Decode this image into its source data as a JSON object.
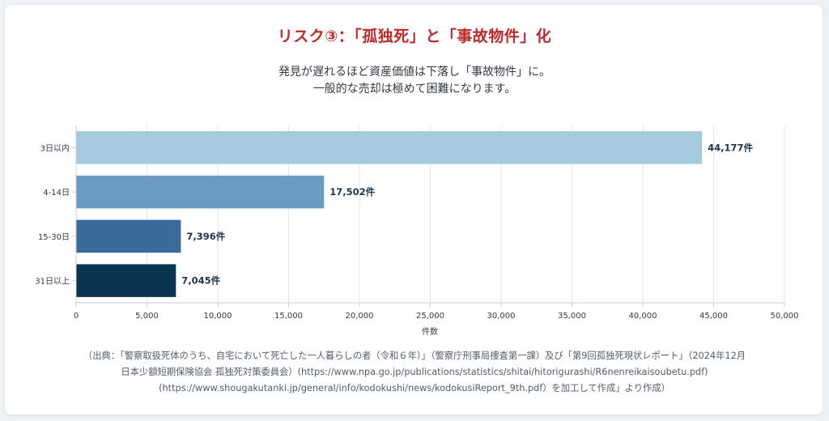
{
  "title": "リスク③：「孤独死」と「事故物件」化",
  "subtitle_lines": [
    "発見が遅れるほど資産価値は下落し「事故物件」に。",
    "一般的な売却は極めて困難になります。"
  ],
  "source_lines": [
    "（出典：「警察取扱死体のうち、自宅において死亡した一人暮らしの者（令和６年）」（警察庁刑事局捜査第一課）及び「第9回孤独死現状レポート」（2024年12月",
    "日本少額短期保険協会 孤独死対策委員会）(https://www.npa.go.jp/publications/statistics/shitai/hitorigurashi/R6nenreikaisoubetu.pdf)",
    "(https://www.shougakutanki.jp/general/info/kodokushi/news/kodokusiReport_9th.pdf）を加工して作成」より作成）"
  ],
  "colors": {
    "title": "#c0282a",
    "bars": [
      "#a5c9dd",
      "#6b9ac2",
      "#3a6b98",
      "#08344f"
    ]
  },
  "chart_data": {
    "type": "bar",
    "orientation": "horizontal",
    "categories": [
      "3日以内",
      "4-14日",
      "15-30日",
      "31日以上"
    ],
    "values": [
      44177,
      17502,
      7396,
      7045
    ],
    "data_labels": [
      "44,177件",
      "17,502件",
      "7,396件",
      "7,045件"
    ],
    "xlabel": "件数",
    "xlim": [
      0,
      50000
    ],
    "xticks": [
      0,
      5000,
      10000,
      15000,
      20000,
      25000,
      30000,
      35000,
      40000,
      45000,
      50000
    ],
    "xtick_labels": [
      "0",
      "5,000",
      "10,000",
      "15,000",
      "20,000",
      "25,000",
      "30,000",
      "35,000",
      "40,000",
      "45,000",
      "50,000"
    ],
    "grid": true,
    "legend": "none"
  }
}
